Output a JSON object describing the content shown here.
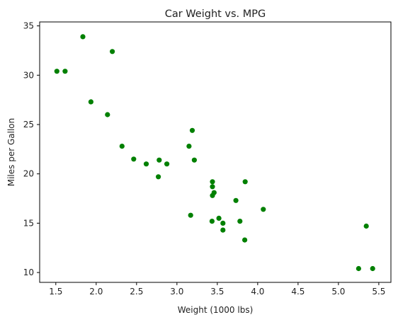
{
  "chart_data": {
    "type": "scatter",
    "title": "Car Weight vs. MPG",
    "xlabel": "Weight (1000 lbs)",
    "ylabel": "Miles per Gallon",
    "xlim": [
      1.3,
      5.65
    ],
    "ylim": [
      9.0,
      35.4
    ],
    "xticks": [
      1.5,
      2.0,
      2.5,
      3.0,
      3.5,
      4.0,
      4.5,
      5.0,
      5.5
    ],
    "xtick_labels": [
      "1.5",
      "2.0",
      "2.5",
      "3.0",
      "3.5",
      "4.0",
      "4.5",
      "5.0",
      "5.5"
    ],
    "yticks": [
      10,
      15,
      20,
      25,
      30,
      35
    ],
    "ytick_labels": [
      "10",
      "15",
      "20",
      "25",
      "30",
      "35"
    ],
    "grid": false,
    "color": "#008000",
    "points": [
      {
        "x": 2.62,
        "y": 21.0
      },
      {
        "x": 2.875,
        "y": 21.0
      },
      {
        "x": 2.32,
        "y": 22.8
      },
      {
        "x": 3.215,
        "y": 21.4
      },
      {
        "x": 3.44,
        "y": 18.7
      },
      {
        "x": 3.46,
        "y": 18.1
      },
      {
        "x": 3.57,
        "y": 14.3
      },
      {
        "x": 3.19,
        "y": 24.4
      },
      {
        "x": 3.15,
        "y": 22.8
      },
      {
        "x": 3.44,
        "y": 19.2
      },
      {
        "x": 3.44,
        "y": 17.8
      },
      {
        "x": 4.07,
        "y": 16.4
      },
      {
        "x": 3.73,
        "y": 17.3
      },
      {
        "x": 3.78,
        "y": 15.2
      },
      {
        "x": 5.25,
        "y": 10.4
      },
      {
        "x": 5.424,
        "y": 10.4
      },
      {
        "x": 5.345,
        "y": 14.7
      },
      {
        "x": 2.2,
        "y": 32.4
      },
      {
        "x": 1.615,
        "y": 30.4
      },
      {
        "x": 1.835,
        "y": 33.9
      },
      {
        "x": 2.465,
        "y": 21.5
      },
      {
        "x": 3.52,
        "y": 15.5
      },
      {
        "x": 3.435,
        "y": 15.2
      },
      {
        "x": 3.84,
        "y": 13.3
      },
      {
        "x": 3.845,
        "y": 19.2
      },
      {
        "x": 1.935,
        "y": 27.3
      },
      {
        "x": 2.14,
        "y": 26.0
      },
      {
        "x": 1.513,
        "y": 30.4
      },
      {
        "x": 3.17,
        "y": 15.8
      },
      {
        "x": 2.77,
        "y": 19.7
      },
      {
        "x": 3.57,
        "y": 15.0
      },
      {
        "x": 2.78,
        "y": 21.4
      }
    ]
  }
}
